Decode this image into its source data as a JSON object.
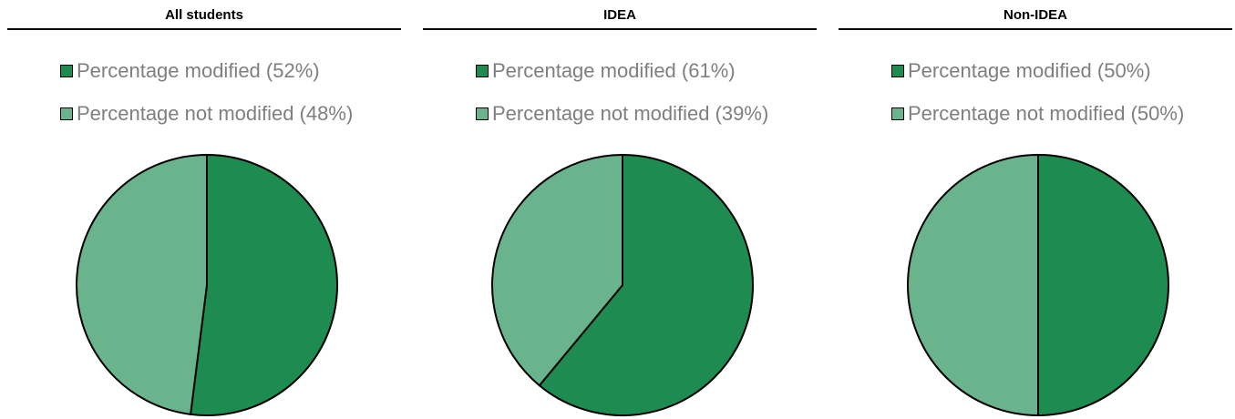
{
  "colors": {
    "modified": "#1e8c50",
    "not_modified": "#69b38d",
    "outline": "#000000"
  },
  "chart_data": [
    {
      "type": "pie",
      "title": "All students",
      "categories": [
        "Percentage modified (52%)",
        "Percentage not modified (48%)"
      ],
      "values": [
        52,
        48
      ]
    },
    {
      "type": "pie",
      "title": "IDEA",
      "categories": [
        "Percentage modified (61%)",
        "Percentage not modified (39%)"
      ],
      "values": [
        61,
        39
      ]
    },
    {
      "type": "pie",
      "title": "Non-IDEA",
      "categories": [
        "Percentage modified (50%)",
        "Percentage not modified (50%)"
      ],
      "values": [
        50,
        50
      ]
    }
  ]
}
